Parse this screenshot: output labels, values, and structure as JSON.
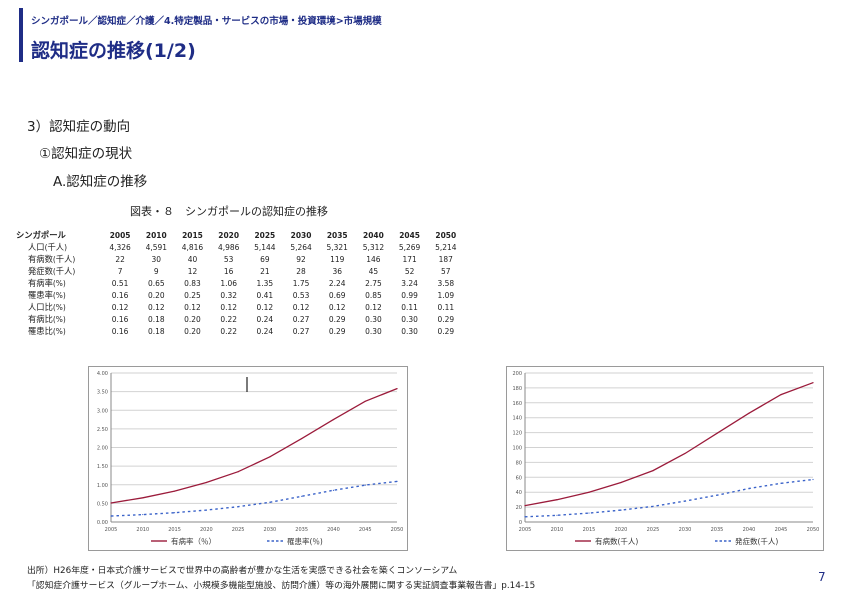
{
  "header": {
    "breadcrumb": "シンガポール／認知症／介護／4.特定製品・サービスの市場・投資環境>市場規模",
    "title": "認知症の推移(1/2)"
  },
  "outline": {
    "level1": "3）認知症の動向",
    "level2": "①認知症の現状",
    "level3": "A.認知症の推移"
  },
  "figure_caption": "図表・８　シンガポールの認知症の推移",
  "table": {
    "corner": "シンガポール",
    "years": [
      "2005",
      "2010",
      "2015",
      "2020",
      "2025",
      "2030",
      "2035",
      "2040",
      "2045",
      "2050"
    ],
    "rows": [
      {
        "label": "人口(千人)",
        "values": [
          "4,326",
          "4,591",
          "4,816",
          "4,986",
          "5,144",
          "5,264",
          "5,321",
          "5,312",
          "5,269",
          "5,214"
        ]
      },
      {
        "label": "有病数(千人)",
        "values": [
          "22",
          "30",
          "40",
          "53",
          "69",
          "92",
          "119",
          "146",
          "171",
          "187"
        ]
      },
      {
        "label": "発症数(千人)",
        "values": [
          "7",
          "9",
          "12",
          "16",
          "21",
          "28",
          "36",
          "45",
          "52",
          "57"
        ]
      },
      {
        "label": "有病率(%)",
        "values": [
          "0.51",
          "0.65",
          "0.83",
          "1.06",
          "1.35",
          "1.75",
          "2.24",
          "2.75",
          "3.24",
          "3.58"
        ]
      },
      {
        "label": "罹患率(%)",
        "values": [
          "0.16",
          "0.20",
          "0.25",
          "0.32",
          "0.41",
          "0.53",
          "0.69",
          "0.85",
          "0.99",
          "1.09"
        ]
      },
      {
        "label": "人口比(%)",
        "values": [
          "0.12",
          "0.12",
          "0.12",
          "0.12",
          "0.12",
          "0.12",
          "0.12",
          "0.12",
          "0.11",
          "0.11"
        ]
      },
      {
        "label": "有病比(%)",
        "values": [
          "0.16",
          "0.18",
          "0.20",
          "0.22",
          "0.24",
          "0.27",
          "0.29",
          "0.30",
          "0.30",
          "0.29"
        ]
      },
      {
        "label": "罹患比(%)",
        "values": [
          "0.16",
          "0.18",
          "0.20",
          "0.22",
          "0.24",
          "0.27",
          "0.29",
          "0.30",
          "0.30",
          "0.29"
        ]
      }
    ]
  },
  "chart_data": [
    {
      "type": "line",
      "x": [
        2005,
        2010,
        2015,
        2020,
        2025,
        2030,
        2035,
        2040,
        2045,
        2050
      ],
      "xticks": [
        "2005",
        "2010",
        "2015",
        "2020",
        "2025",
        "2030",
        "2035",
        "2040",
        "2045",
        "2050"
      ],
      "ylim": [
        0,
        4
      ],
      "yticks": [
        "0.00",
        "0.50",
        "1.00",
        "1.50",
        "2.00",
        "2.50",
        "3.00",
        "3.50",
        "4.00"
      ],
      "grid": true,
      "legend": "bottom",
      "series": [
        {
          "name": "有病率（％）",
          "values": [
            0.51,
            0.65,
            0.83,
            1.06,
            1.35,
            1.75,
            2.24,
            2.75,
            3.24,
            3.58
          ],
          "color": "#9b1b3b",
          "style": "solid"
        },
        {
          "name": "罹患率(％)",
          "values": [
            0.16,
            0.2,
            0.25,
            0.32,
            0.41,
            0.53,
            0.69,
            0.85,
            0.99,
            1.09
          ],
          "color": "#3b63c9",
          "style": "dashed"
        }
      ]
    },
    {
      "type": "line",
      "x": [
        2005,
        2010,
        2015,
        2020,
        2025,
        2030,
        2035,
        2040,
        2045,
        2050
      ],
      "xticks": [
        "2005",
        "2010",
        "2015",
        "2020",
        "2025",
        "2030",
        "2035",
        "2040",
        "2045",
        "2050"
      ],
      "ylim": [
        0,
        200
      ],
      "yticks": [
        "0",
        "20",
        "40",
        "60",
        "80",
        "100",
        "120",
        "140",
        "160",
        "180",
        "200"
      ],
      "grid": true,
      "legend": "bottom",
      "series": [
        {
          "name": "有病数(千人)",
          "values": [
            22,
            30,
            40,
            53,
            69,
            92,
            119,
            146,
            171,
            187
          ],
          "color": "#9b1b3b",
          "style": "solid"
        },
        {
          "name": "発症数(千人)",
          "values": [
            7,
            9,
            12,
            16,
            21,
            28,
            36,
            45,
            52,
            57
          ],
          "color": "#3b63c9",
          "style": "dashed"
        }
      ]
    }
  ],
  "source": {
    "line1": "出所）H26年度・日本式介護サービスで世界中の高齢者が豊かな生活を実感できる社会を築くコンソーシアム",
    "line2": "「認知症介護サービス（グループホーム、小規模多機能型施設、訪問介護）等の海外展開に関する実証調査事業報告書」p.14-15"
  },
  "page_number": "7"
}
